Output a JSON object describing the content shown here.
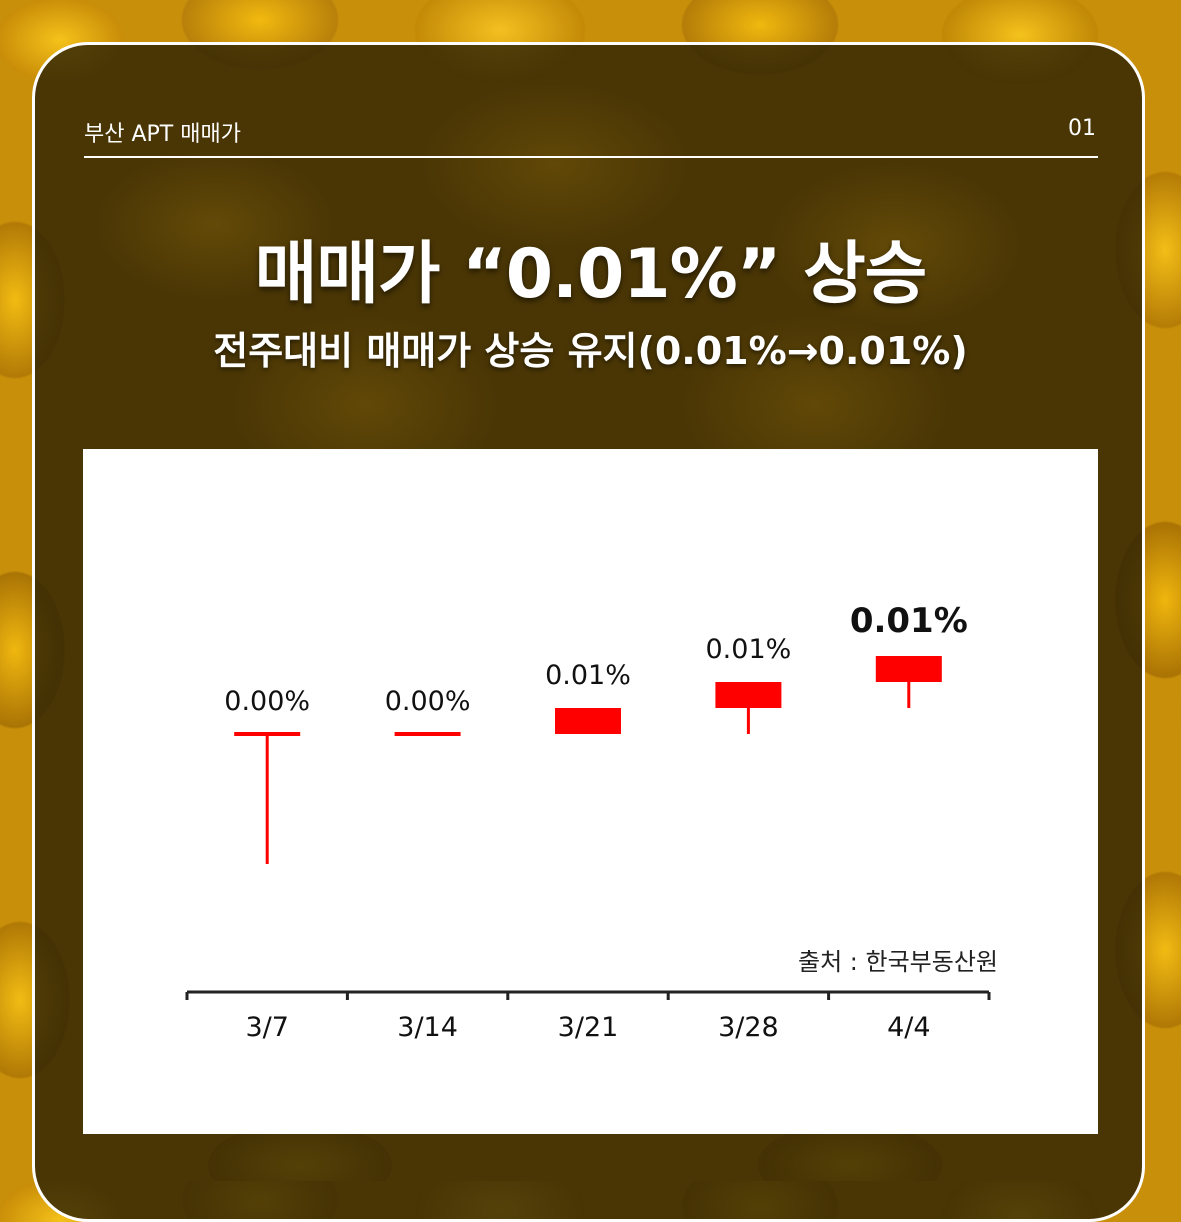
{
  "header": {
    "label": "부산 APT 매매가",
    "page_number": "01"
  },
  "title": "매매가 “0.01%” 상승",
  "subtitle": "전주대비 매매가 상승 유지(0.01%→0.01%)",
  "source": "출처 : 한국부동산원",
  "colors": {
    "candle": "#ff0000",
    "axis": "#222222",
    "text": "#111111"
  },
  "chart_data": {
    "type": "bar",
    "chart_style": "candlestick",
    "categories": [
      "3/7",
      "3/14",
      "3/21",
      "3/28",
      "4/4"
    ],
    "labels": [
      "0.00%",
      "0.00%",
      "0.01%",
      "0.01%",
      "0.01%"
    ],
    "open": [
      0.0,
      0.0,
      0.0,
      0.01,
      0.02
    ],
    "close": [
      0.0,
      0.0,
      0.01,
      0.02,
      0.03
    ],
    "low": [
      -0.05,
      0.0,
      0.0,
      0.0,
      0.01
    ],
    "high": [
      0.0,
      0.0,
      0.01,
      0.02,
      0.03
    ],
    "ylim": [
      -0.06,
      0.08
    ],
    "grid": false,
    "xlabel": "",
    "ylabel": ""
  }
}
